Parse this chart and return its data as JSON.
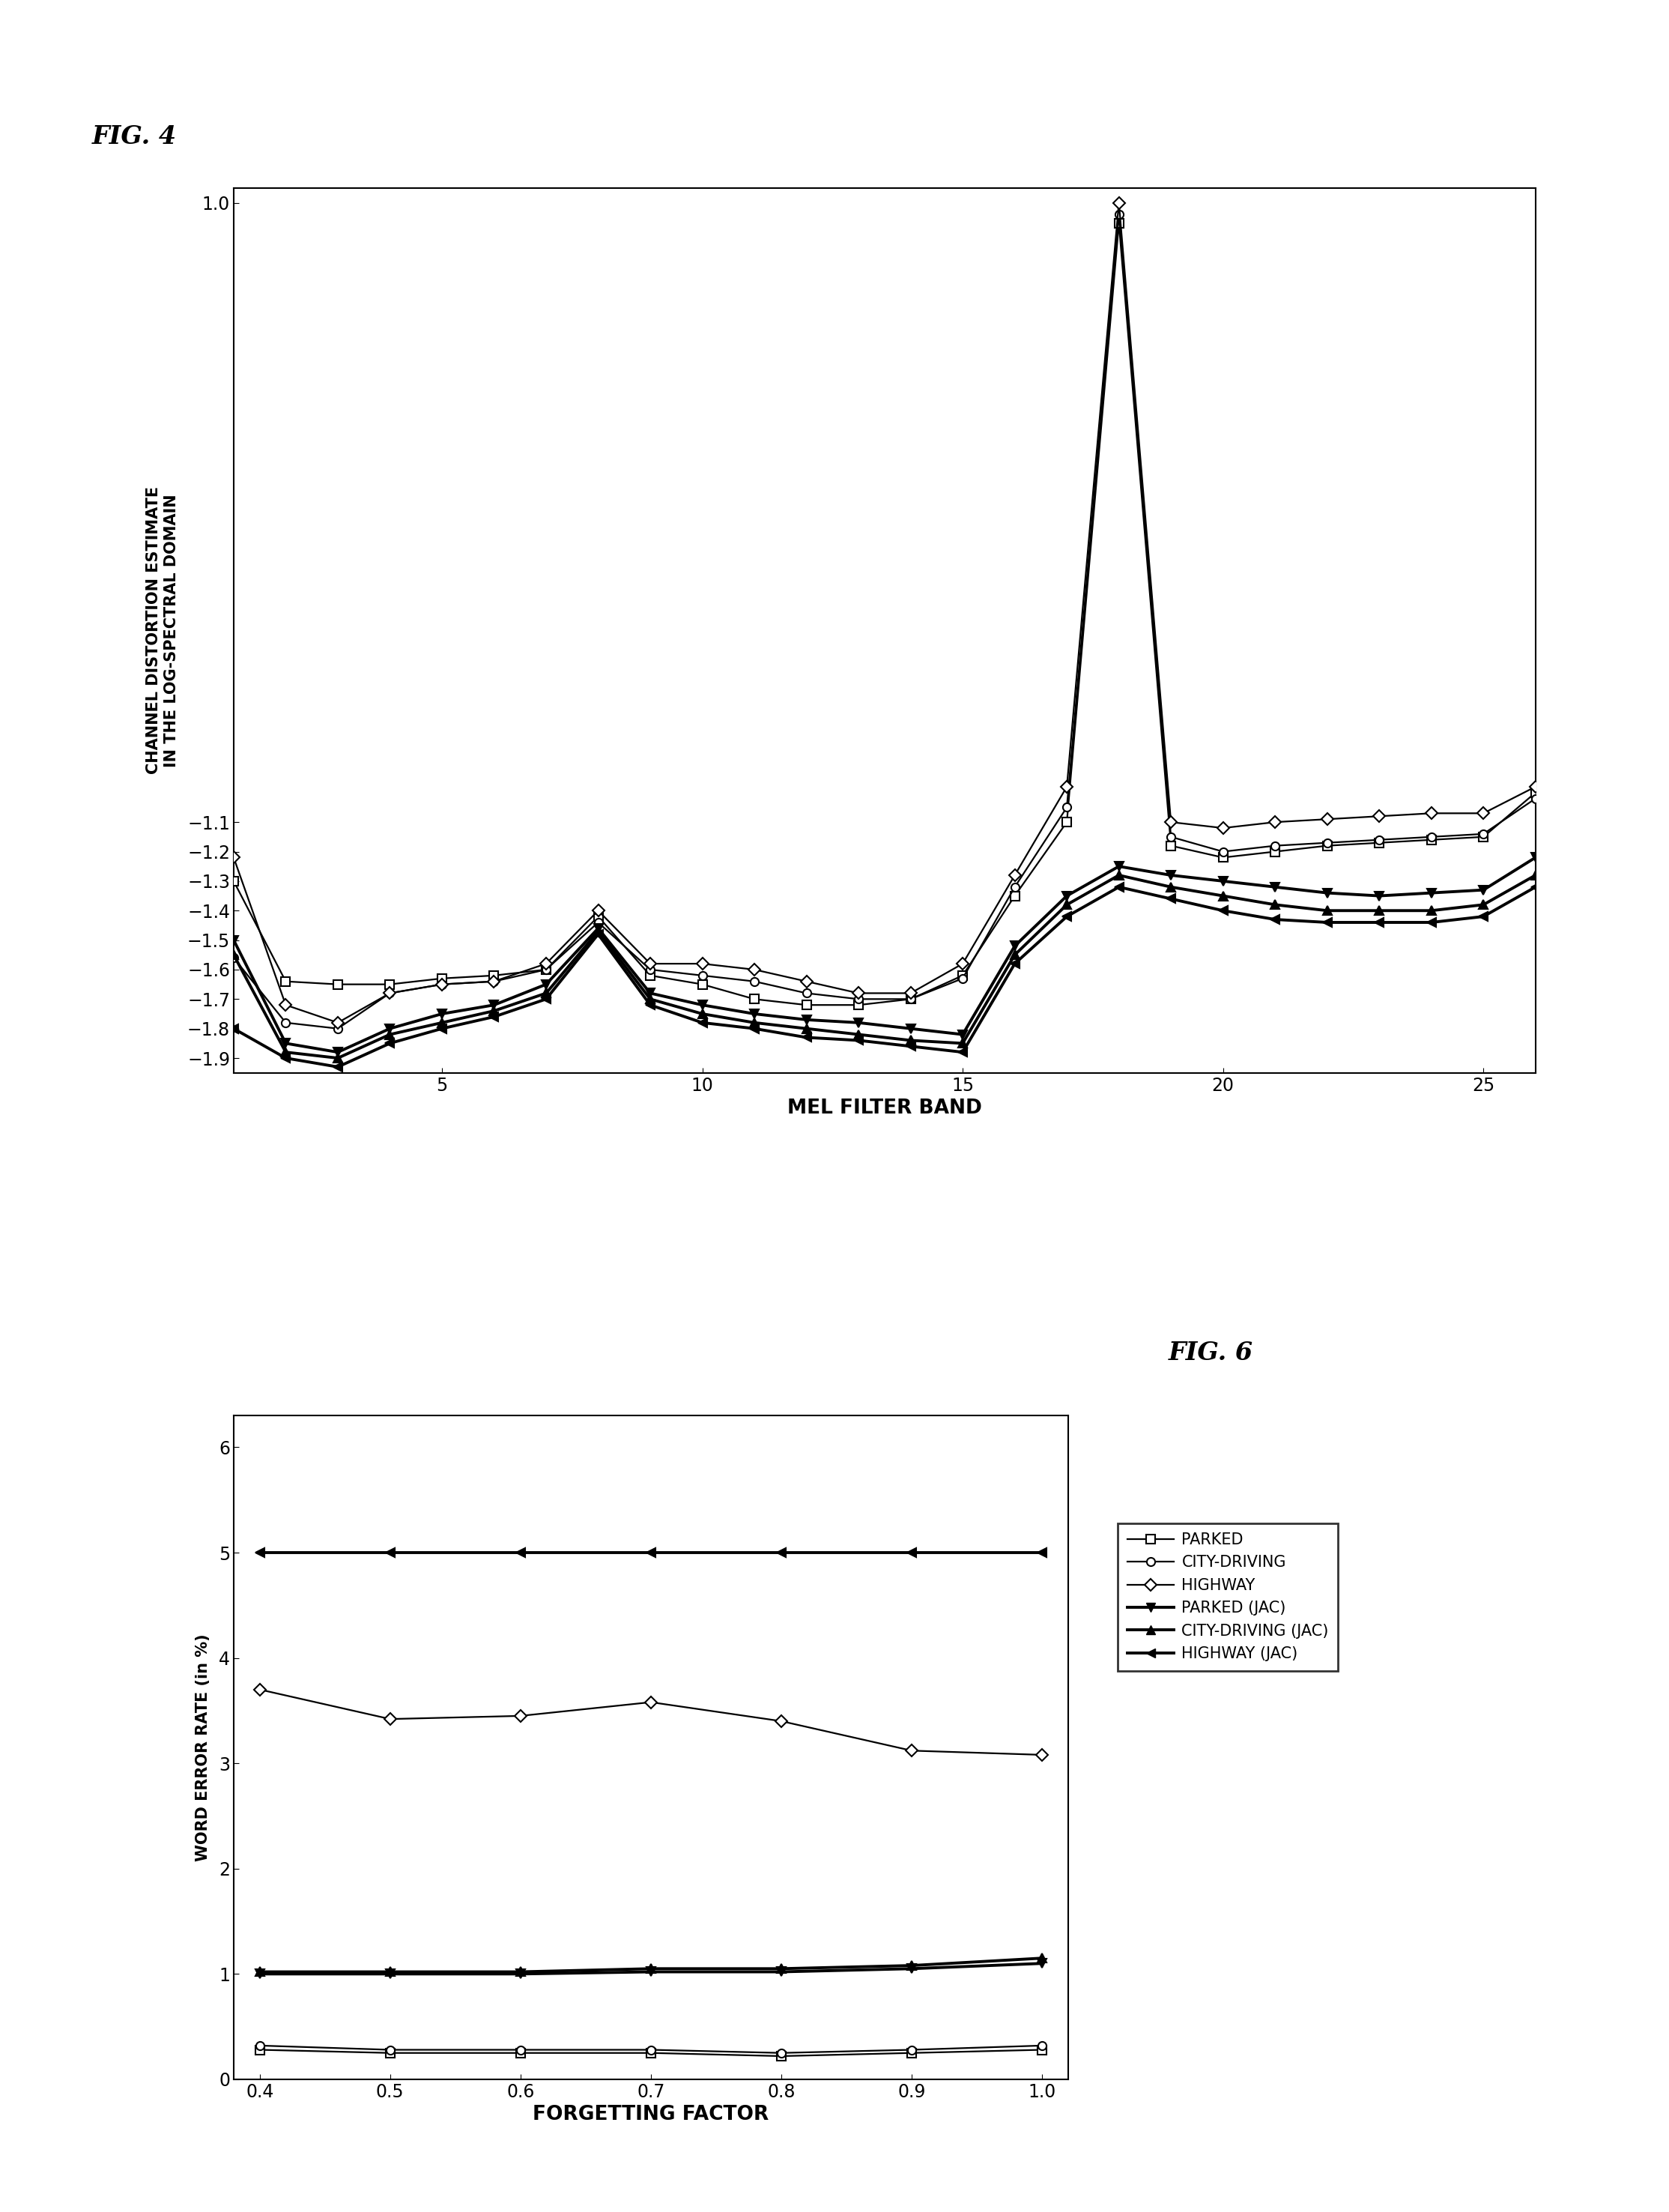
{
  "fig4": {
    "x": [
      1,
      2,
      3,
      4,
      5,
      6,
      7,
      8,
      9,
      10,
      11,
      12,
      13,
      14,
      15,
      16,
      17,
      18,
      19,
      20,
      21,
      22,
      23,
      24,
      25,
      26
    ],
    "mean_parked": [
      -1.3,
      -1.64,
      -1.65,
      -1.65,
      -1.63,
      -1.62,
      -1.6,
      -1.42,
      -1.62,
      -1.65,
      -1.7,
      -1.72,
      -1.72,
      -1.7,
      -1.62,
      -1.35,
      -1.1,
      0.93,
      -1.18,
      -1.22,
      -1.2,
      -1.18,
      -1.17,
      -1.16,
      -1.15,
      -1.0
    ],
    "mean_city": [
      -1.56,
      -1.78,
      -1.8,
      -1.68,
      -1.65,
      -1.64,
      -1.6,
      -1.44,
      -1.6,
      -1.62,
      -1.64,
      -1.68,
      -1.7,
      -1.7,
      -1.63,
      -1.32,
      -1.05,
      0.96,
      -1.15,
      -1.2,
      -1.18,
      -1.17,
      -1.16,
      -1.15,
      -1.14,
      -1.02
    ],
    "mean_highway": [
      -1.22,
      -1.72,
      -1.78,
      -1.68,
      -1.65,
      -1.64,
      -1.58,
      -1.4,
      -1.58,
      -1.58,
      -1.6,
      -1.64,
      -1.68,
      -1.68,
      -1.58,
      -1.28,
      -0.98,
      1.0,
      -1.1,
      -1.12,
      -1.1,
      -1.09,
      -1.08,
      -1.07,
      -1.07,
      -0.98
    ],
    "mean_parked_jac": [
      -1.5,
      -1.85,
      -1.88,
      -1.8,
      -1.75,
      -1.72,
      -1.65,
      -1.46,
      -1.68,
      -1.72,
      -1.75,
      -1.77,
      -1.78,
      -1.8,
      -1.82,
      -1.52,
      -1.35,
      -1.25,
      -1.28,
      -1.3,
      -1.32,
      -1.34,
      -1.35,
      -1.34,
      -1.33,
      -1.22
    ],
    "mean_city_jac": [
      -1.55,
      -1.88,
      -1.9,
      -1.82,
      -1.78,
      -1.74,
      -1.68,
      -1.47,
      -1.7,
      -1.75,
      -1.78,
      -1.8,
      -1.82,
      -1.84,
      -1.85,
      -1.55,
      -1.38,
      -1.28,
      -1.32,
      -1.35,
      -1.38,
      -1.4,
      -1.4,
      -1.4,
      -1.38,
      -1.28
    ],
    "mean_highway_jac": [
      -1.8,
      -1.9,
      -1.93,
      -1.85,
      -1.8,
      -1.76,
      -1.7,
      -1.48,
      -1.72,
      -1.78,
      -1.8,
      -1.83,
      -1.84,
      -1.86,
      -1.88,
      -1.58,
      -1.42,
      -1.32,
      -1.36,
      -1.4,
      -1.43,
      -1.44,
      -1.44,
      -1.44,
      -1.42,
      -1.32
    ],
    "ylabel": "CHANNEL DISTORTION ESTIMATE\nIN THE LOG-SPECTRAL DOMAIN",
    "xlabel": "MEL FILTER BAND",
    "ylim": [
      -1.95,
      1.05
    ],
    "xlim": [
      1,
      26
    ],
    "yticks": [
      1.0,
      -1.1,
      -1.2,
      -1.3,
      -1.4,
      -1.5,
      -1.6,
      -1.7,
      -1.8,
      -1.9
    ],
    "xticks": [
      5,
      10,
      15,
      20,
      25
    ]
  },
  "fig6": {
    "x": [
      0.4,
      0.5,
      0.6,
      0.7,
      0.8,
      0.9,
      1.0
    ],
    "parked": [
      0.28,
      0.25,
      0.25,
      0.25,
      0.22,
      0.25,
      0.28
    ],
    "city_driving": [
      0.32,
      0.28,
      0.28,
      0.28,
      0.25,
      0.28,
      0.32
    ],
    "highway": [
      3.7,
      3.42,
      3.45,
      3.58,
      3.4,
      3.12,
      3.08
    ],
    "parked_jac": [
      1.0,
      1.0,
      1.0,
      1.02,
      1.02,
      1.05,
      1.1
    ],
    "city_driving_jac": [
      1.02,
      1.02,
      1.02,
      1.05,
      1.05,
      1.08,
      1.15
    ],
    "highway_jac": [
      5.0,
      5.0,
      5.0,
      5.0,
      5.0,
      5.0,
      5.0
    ],
    "ylabel": "WORD ERROR RATE (in %)",
    "xlabel": "FORGETTING FACTOR",
    "ylim": [
      0.0,
      6.3
    ],
    "xlim": [
      0.38,
      1.02
    ],
    "yticks": [
      0.0,
      1.0,
      2.0,
      3.0,
      4.0,
      5.0,
      6.0
    ],
    "xticks": [
      0.4,
      0.5,
      0.6,
      0.7,
      0.8,
      0.9,
      1.0
    ]
  },
  "fig4_label": "FIG. 4",
  "fig6_label": "FIG. 6"
}
